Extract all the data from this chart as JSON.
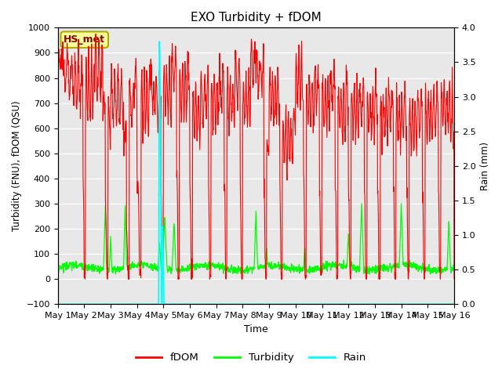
{
  "title": "EXO Turbidity + fDOM",
  "xlabel": "Time",
  "ylabel_left": "Turbidity (FNU), fDOM (QSU)",
  "ylabel_right": "Rain (mm)",
  "ylim_left": [
    -100,
    1000
  ],
  "ylim_right": [
    0.0,
    4.0
  ],
  "yticks_left": [
    -100,
    0,
    100,
    200,
    300,
    400,
    500,
    600,
    700,
    800,
    900,
    1000
  ],
  "yticks_right": [
    0.0,
    0.5,
    1.0,
    1.5,
    2.0,
    2.5,
    3.0,
    3.5,
    4.0
  ],
  "xtick_labels": [
    "May 1",
    "May 2",
    "May 3",
    "May 4",
    "May 5",
    "May 6",
    "May 7",
    "May 8",
    "May 9",
    "May 10",
    "May 11",
    "May 12",
    "May 13",
    "May 14",
    "May 15",
    "May 16"
  ],
  "station_label": "HS_met",
  "colors": {
    "fdom": "#FF0000",
    "turbidity": "#00FF00",
    "rain": "#00FFFF",
    "background": "#E8E8E8",
    "station_box_face": "#FFFF99",
    "station_box_edge": "#AAAA00"
  },
  "legend_entries": [
    "fDOM",
    "Turbidity",
    "Rain"
  ],
  "num_points": 1441,
  "seed": 42
}
